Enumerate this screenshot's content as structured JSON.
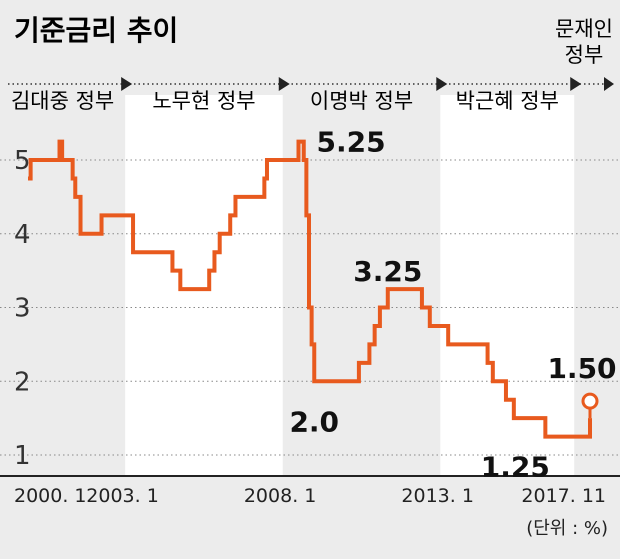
{
  "chart_data": {
    "type": "line",
    "title": "기준금리 추이",
    "unit_note": "(단위 : %)",
    "ylim": [
      0.5,
      5.5
    ],
    "yticks": [
      "1",
      "2",
      "3",
      "4",
      "5"
    ],
    "xrange": [
      "2000-01",
      "2017-11"
    ],
    "xticks": [
      {
        "date": "2000-01",
        "label": "2000. 1"
      },
      {
        "date": "2003-01",
        "label": "2003. 1"
      },
      {
        "date": "2008-01",
        "label": "2008. 1"
      },
      {
        "date": "2013-01",
        "label": "2013. 1"
      },
      {
        "date": "2017-11",
        "label": "2017. 11"
      }
    ],
    "eras": [
      {
        "label": "김대중 정부",
        "start": "2000-01",
        "end": "2003-02",
        "shaded": true
      },
      {
        "label": "노무현 정부",
        "start": "2003-02",
        "end": "2008-02",
        "shaded": false
      },
      {
        "label": "이명박 정부",
        "start": "2008-02",
        "end": "2013-02",
        "shaded": true
      },
      {
        "label": "박근혜 정부",
        "start": "2013-02",
        "end": "2017-05",
        "shaded": false
      },
      {
        "label": "문재인 정부",
        "start": "2017-05",
        "end": "2017-11",
        "shaded": true
      }
    ],
    "series": [
      {
        "color": "#e85a1e",
        "points": [
          [
            "2000-01",
            4.75
          ],
          [
            "2000-02",
            5.0
          ],
          [
            "2001-01",
            5.25
          ],
          [
            "2001-02",
            5.0
          ],
          [
            "2001-06",
            4.75
          ],
          [
            "2001-07",
            4.5
          ],
          [
            "2001-09",
            4.0
          ],
          [
            "2002-05",
            4.25
          ],
          [
            "2003-05",
            3.75
          ],
          [
            "2004-08",
            3.5
          ],
          [
            "2004-11",
            3.25
          ],
          [
            "2005-10",
            3.5
          ],
          [
            "2005-12",
            3.75
          ],
          [
            "2006-02",
            4.0
          ],
          [
            "2006-06",
            4.25
          ],
          [
            "2006-08",
            4.5
          ],
          [
            "2007-07",
            4.75
          ],
          [
            "2007-08",
            5.0
          ],
          [
            "2008-08",
            5.25
          ],
          [
            "2008-10",
            5.0
          ],
          [
            "2008-11",
            4.25
          ],
          [
            "2008-12",
            3.0
          ],
          [
            "2009-01",
            2.5
          ],
          [
            "2009-02",
            2.0
          ],
          [
            "2010-07",
            2.25
          ],
          [
            "2010-11",
            2.5
          ],
          [
            "2011-01",
            2.75
          ],
          [
            "2011-03",
            3.0
          ],
          [
            "2011-06",
            3.25
          ],
          [
            "2012-07",
            3.0
          ],
          [
            "2012-10",
            2.75
          ],
          [
            "2013-05",
            2.5
          ],
          [
            "2014-08",
            2.25
          ],
          [
            "2014-10",
            2.0
          ],
          [
            "2015-03",
            1.75
          ],
          [
            "2015-06",
            1.5
          ],
          [
            "2016-06",
            1.25
          ],
          [
            "2017-11",
            1.5
          ]
        ]
      }
    ],
    "data_labels": [
      {
        "date": "2008-08",
        "value": 5.25,
        "text": "5.25"
      },
      {
        "date": "2009-02",
        "value": 2.0,
        "text": "2.0"
      },
      {
        "date": "2011-06",
        "value": 3.25,
        "text": "3.25"
      },
      {
        "date": "2016-06",
        "value": 1.25,
        "text": "1.25"
      },
      {
        "date": "2017-11",
        "value": 1.5,
        "text": "1.50"
      }
    ]
  }
}
